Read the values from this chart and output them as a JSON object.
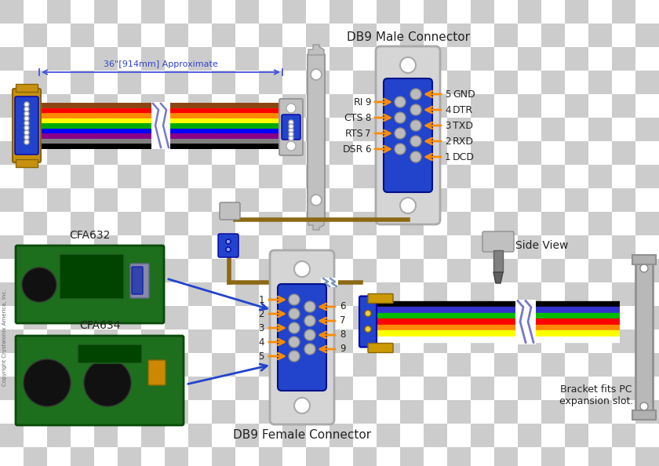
{
  "checker_color1": "#cccccc",
  "checker_color2": "#ffffff",
  "title_db9male": "DB9 Male Connector",
  "title_db9female": "DB9 Female Connector",
  "label_approx": "36\"[914mm] Approximate",
  "label_side_view": "Side View",
  "label_bracket": "Bracket fits PC\nexpansion slot.",
  "label_cfa632": "CFA632",
  "label_cfa634": "CFA634",
  "copyright": "Copyright Crystalonix America, Inc.",
  "male_left_labels": [
    "RI",
    "CTS",
    "RTS",
    "DSR"
  ],
  "male_left_pins": [
    "9",
    "8",
    "7",
    "6"
  ],
  "male_right_pins": [
    "5",
    "4",
    "3",
    "2",
    "1"
  ],
  "male_right_labels": [
    "GND",
    "DTR",
    "TXD",
    "RXD",
    "DCD"
  ],
  "female_left_pins": [
    "1",
    "2",
    "3",
    "4",
    "5"
  ],
  "female_right_pins": [
    "6",
    "7",
    "8",
    "9"
  ],
  "db9_blue": "#2244cc",
  "connector_gray": "#c8c8c8",
  "bracket_gray": "#b0b0b0",
  "cable_brown": "#8B6914",
  "arrow_color": "#ff8c00",
  "text_dark": "#222222",
  "blue_text": "#3344cc",
  "dim_line_color": "#4455dd",
  "board_green": "#1d6e1d",
  "board_dark": "#0a4a0a",
  "wire_colors_top": [
    "#8B4513",
    "#ff0000",
    "#ff8800",
    "#ffff00",
    "#00aa00",
    "#0000ff",
    "#880088",
    "#808080",
    "#000000"
  ],
  "wire_colors_bottom": [
    "#000000",
    "#3333cc",
    "#00bb00",
    "#ff0000",
    "#ff8800",
    "#ffff00",
    "#ffffff"
  ]
}
